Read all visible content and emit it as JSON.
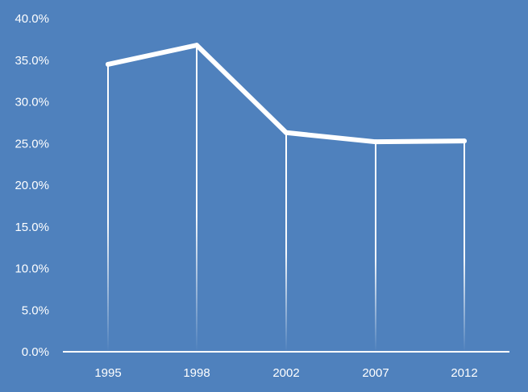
{
  "chart_data": {
    "type": "line",
    "categories": [
      "1995",
      "1998",
      "2002",
      "2007",
      "2012"
    ],
    "series": [
      {
        "values": [
          34.5,
          36.8,
          26.3,
          25.2,
          25.3
        ]
      }
    ],
    "y_ticks": [
      "0.0%",
      "5.0%",
      "10.0%",
      "15.0%",
      "20.0%",
      "25.0%",
      "30.0%",
      "35.0%",
      "40.0%"
    ],
    "ylim": [
      0,
      40
    ],
    "grid": false,
    "drop_lines": true,
    "colors": {
      "background": "#4f81bd",
      "line": "#ffffff",
      "axis": "#ffffff",
      "text": "#ffffff"
    }
  }
}
